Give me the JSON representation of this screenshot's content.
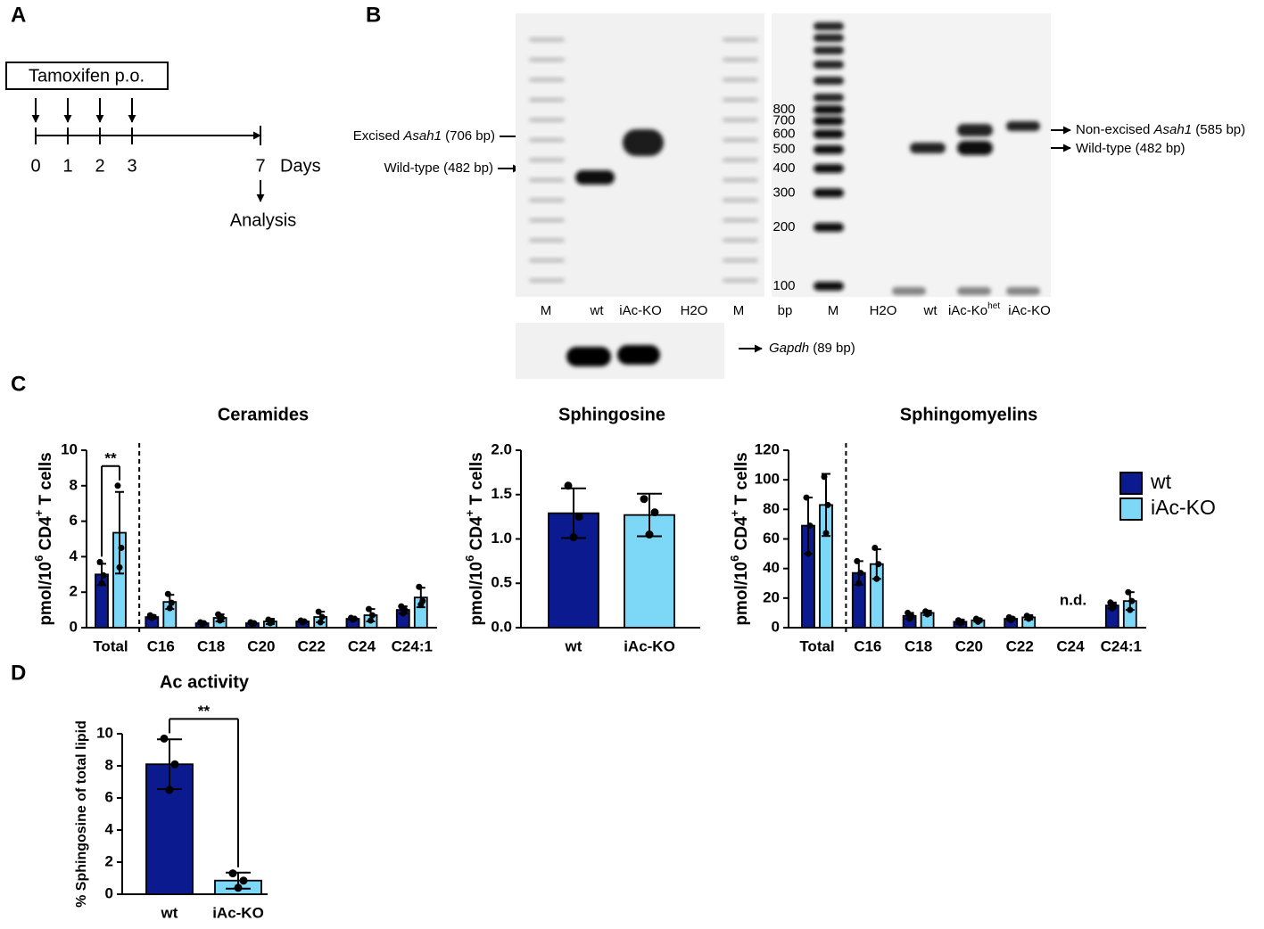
{
  "panel_labels": [
    "A",
    "B",
    "C",
    "D"
  ],
  "timeline": {
    "treatment": "Tamoxifen p.o.",
    "doses": [
      0,
      1,
      2,
      3
    ],
    "analysis_day": 7,
    "unit": "Days",
    "endpoint": "Analysis"
  },
  "gel_asah1": {
    "lanes": [
      "M",
      "wt",
      "iAc-KO",
      "H2O",
      "M"
    ],
    "bands": [
      {
        "pre": "Excised ",
        "gene": "Asah1",
        "post": " (706 bp)"
      },
      {
        "text": "Wild-type (482 bp)"
      }
    ]
  },
  "gel_gapdh": {
    "gene": "Gapdh",
    "post": " (89 bp)"
  },
  "gel_ladder": {
    "unit": "bp",
    "sizes": [
      800,
      700,
      600,
      500,
      400,
      300,
      200,
      100
    ],
    "lanes": [
      "M",
      "H2O",
      "wt",
      {
        "text": "iAc-Ko",
        "sup": "het"
      },
      "iAc-KO"
    ],
    "bands": [
      {
        "pre": "Non-excised ",
        "gene": "Asah1",
        "post": " (585 bp)"
      },
      {
        "text": "Wild-type (482 bp)"
      }
    ]
  },
  "chart_data": [
    {
      "type": "bar",
      "title": "Ceramides",
      "ylabel": [
        "pmol/10",
        "6",
        " CD4",
        "+",
        " T cells"
      ],
      "categories": [
        "Total",
        "C16",
        "C18",
        "C20",
        "C22",
        "C24",
        "C24:1"
      ],
      "series": [
        {
          "color": "#0b1a8f",
          "values": [
            3.0,
            0.6,
            0.25,
            0.25,
            0.35,
            0.5,
            1.0
          ],
          "errors": [
            0.6,
            0.1,
            0.05,
            0.05,
            0.05,
            0.05,
            0.2
          ],
          "points": [
            [
              3.7,
              2.95,
              2.5
            ],
            [
              0.7,
              0.6,
              0.55
            ],
            [
              0.3,
              0.25,
              0.2
            ],
            [
              0.3,
              0.25,
              0.2
            ],
            [
              0.4,
              0.35,
              0.3
            ],
            [
              0.55,
              0.5,
              0.45
            ],
            [
              1.2,
              1.0,
              0.8
            ]
          ]
        },
        {
          "color": "#7dd8f8",
          "values": [
            5.35,
            1.45,
            0.55,
            0.35,
            0.6,
            0.7,
            1.7
          ],
          "errors": [
            2.3,
            0.4,
            0.2,
            0.15,
            0.3,
            0.35,
            0.55
          ],
          "points": [
            [
              8.0,
              4.5,
              3.4
            ],
            [
              1.9,
              1.4,
              1.1
            ],
            [
              0.75,
              0.55,
              0.4
            ],
            [
              0.45,
              0.35,
              0.25
            ],
            [
              0.9,
              0.6,
              0.3
            ],
            [
              1.05,
              0.7,
              0.4
            ],
            [
              2.3,
              1.5,
              1.3
            ]
          ]
        }
      ],
      "ylim": [
        0,
        10
      ],
      "yticks": [
        0,
        2,
        4,
        6,
        8,
        10
      ],
      "significance": "**"
    },
    {
      "type": "bar",
      "title": "Sphingosine",
      "ylabel": [
        "pmol/10",
        "6",
        " CD4",
        "+",
        " T cells"
      ],
      "categories": [
        "wt",
        "iAc-KO"
      ],
      "values": [
        1.29,
        1.27
      ],
      "errors": [
        0.28,
        0.24
      ],
      "colors": [
        "#0b1a8f",
        "#7dd8f8"
      ],
      "points": [
        [
          1.6,
          1.25,
          1.02
        ],
        [
          1.45,
          1.3,
          1.05
        ]
      ],
      "ylim": [
        0,
        2
      ],
      "yticks": [
        {
          "value": 0,
          "label": "0.0"
        },
        0.5,
        {
          "value": 1,
          "label": "1.0"
        },
        1.5,
        {
          "value": 2,
          "label": "2.0"
        }
      ]
    },
    {
      "type": "bar",
      "title": "Sphingomyelins",
      "ylabel": [
        "pmol/10",
        "6",
        " CD4",
        "+",
        " T cells"
      ],
      "categories": [
        "Total",
        "C16",
        "C18",
        "C20",
        "C22",
        "C24",
        "C24:1"
      ],
      "series": [
        {
          "name": "wt",
          "color": "#0b1a8f",
          "values": [
            69,
            37,
            8,
            4,
            6,
            null,
            15
          ],
          "errors": [
            19,
            8,
            2,
            1.5,
            1,
            null,
            2
          ],
          "points": [
            [
              88,
              69,
              50
            ],
            [
              45,
              37,
              30
            ],
            [
              10,
              8,
              6
            ],
            [
              5,
              4,
              3
            ],
            [
              7,
              6,
              5
            ],
            null,
            [
              17,
              15,
              13
            ]
          ]
        },
        {
          "name": "iAc-KO",
          "color": "#7dd8f8",
          "values": [
            83,
            43,
            10,
            5,
            7,
            null,
            18
          ],
          "errors": [
            21,
            10,
            1.5,
            1,
            1.5,
            null,
            6
          ],
          "points": [
            [
              102,
              83,
              64
            ],
            [
              54,
              43,
              33
            ],
            [
              11,
              10,
              9
            ],
            [
              6,
              5,
              4
            ],
            [
              8,
              7,
              6
            ],
            null,
            [
              24,
              18,
              12
            ]
          ]
        }
      ],
      "ylim": [
        0,
        120
      ],
      "yticks": [
        0,
        20,
        40,
        60,
        80,
        100,
        120
      ],
      "annotation": "n.d.",
      "legend": "right"
    },
    {
      "type": "bar",
      "title": "Ac activity",
      "ylabel": "% Sphingosine of total lipid",
      "categories": [
        "wt",
        "iAc-KO"
      ],
      "values": [
        8.1,
        0.85
      ],
      "errors": [
        1.55,
        0.5
      ],
      "colors": [
        "#0b1a8f",
        "#7dd8f8"
      ],
      "points": [
        [
          9.7,
          8.1,
          6.5
        ],
        [
          1.3,
          0.85,
          0.4
        ]
      ],
      "ylim": [
        0,
        10
      ],
      "yticks": [
        0,
        2,
        4,
        6,
        8,
        10
      ],
      "significance": "**"
    }
  ]
}
